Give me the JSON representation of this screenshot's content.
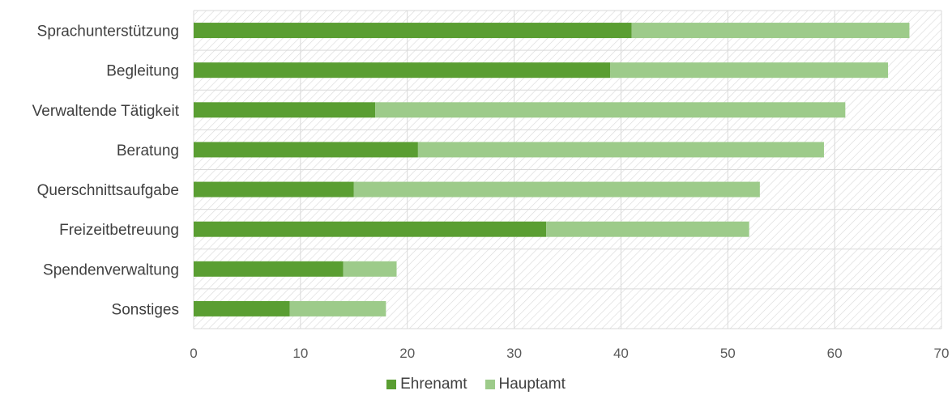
{
  "chart_data": {
    "type": "bar",
    "orientation": "horizontal",
    "stacked": true,
    "categories": [
      "Sprachunterstützung",
      "Begleitung",
      "Verwaltende Tätigkeit",
      "Beratung",
      "Querschnittsaufgabe",
      "Freizeitbetreuung",
      "Spendenverwaltung",
      "Sonstiges"
    ],
    "series": [
      {
        "name": "Ehrenamt",
        "color": "#5a9e32",
        "values": [
          41,
          39,
          17,
          21,
          15,
          33,
          14,
          9
        ]
      },
      {
        "name": "Hauptamt",
        "color": "#9dcb8a",
        "values": [
          26,
          26,
          44,
          38,
          38,
          19,
          5,
          9
        ]
      }
    ],
    "xlim": [
      0,
      70
    ],
    "xticks": [
      "0",
      "10",
      "20",
      "30",
      "40",
      "50",
      "60",
      "70"
    ],
    "grid": true,
    "background": "hatched",
    "legend_position": "bottom"
  }
}
